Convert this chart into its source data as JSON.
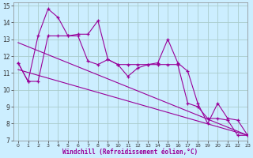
{
  "bg_color": "#cceeff",
  "line_color": "#990099",
  "grid_color": "#aacccc",
  "xlim": [
    -0.5,
    23
  ],
  "ylim": [
    7,
    15.2
  ],
  "yticks": [
    7,
    8,
    9,
    10,
    11,
    12,
    13,
    14,
    15
  ],
  "xticks": [
    0,
    1,
    2,
    3,
    4,
    5,
    6,
    7,
    8,
    9,
    10,
    11,
    12,
    13,
    14,
    15,
    16,
    17,
    18,
    19,
    20,
    21,
    22,
    23
  ],
  "line1_x": [
    0,
    1,
    2,
    3,
    4,
    5,
    6,
    7,
    8,
    9,
    10,
    11,
    12,
    13,
    14,
    15,
    16,
    17,
    18,
    19,
    20,
    21,
    22,
    23
  ],
  "line1_y": [
    11.6,
    10.5,
    13.2,
    14.8,
    14.3,
    13.2,
    13.3,
    13.3,
    14.1,
    11.8,
    11.5,
    10.8,
    11.3,
    11.5,
    11.6,
    13.0,
    11.6,
    11.1,
    9.2,
    8.0,
    9.2,
    8.3,
    8.2,
    7.3
  ],
  "line2_x": [
    0,
    1,
    2,
    3,
    4,
    5,
    6,
    7,
    8,
    9,
    10,
    11,
    12,
    13,
    14,
    15,
    16,
    17,
    18,
    19,
    20,
    21,
    22,
    23
  ],
  "line2_y": [
    11.6,
    10.5,
    10.5,
    13.2,
    13.2,
    13.2,
    13.2,
    11.7,
    11.5,
    11.8,
    11.5,
    11.5,
    11.5,
    11.5,
    11.5,
    11.5,
    11.5,
    9.2,
    9.0,
    8.3,
    8.3,
    8.2,
    7.3,
    7.3
  ],
  "trend_x": [
    0,
    23
  ],
  "trend_y": [
    12.8,
    7.3
  ],
  "trend2_x": [
    0,
    23
  ],
  "trend2_y": [
    11.2,
    7.3
  ],
  "xlabel": "Windchill (Refroidissement éolien,°C)"
}
